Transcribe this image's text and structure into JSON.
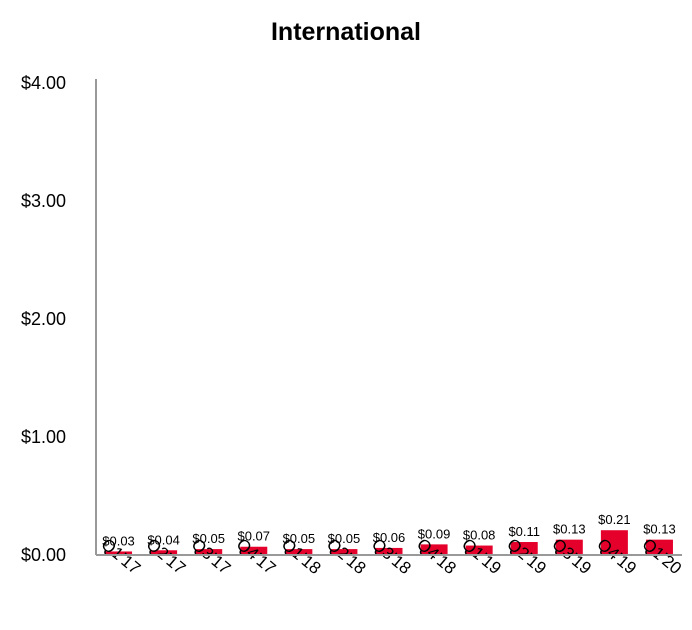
{
  "chart_data": {
    "type": "bar",
    "title": "International",
    "xlabel": "",
    "ylabel": "",
    "categories": [
      "Q1'17",
      "Q2'17",
      "Q3'17",
      "Q4'17",
      "Q1'18",
      "Q2'18",
      "Q3'18",
      "Q4'18",
      "Q1'19",
      "Q2'19",
      "Q3'19",
      "Q4'19",
      "Q1'20"
    ],
    "values": [
      0.03,
      0.04,
      0.05,
      0.07,
      0.05,
      0.05,
      0.06,
      0.09,
      0.08,
      0.11,
      0.13,
      0.21,
      0.13
    ],
    "data_labels": [
      "$0.03",
      "$0.04",
      "$0.05",
      "$0.07",
      "$0.05",
      "$0.05",
      "$0.06",
      "$0.09",
      "$0.08",
      "$0.11",
      "$0.13",
      "$0.21",
      "$0.13"
    ],
    "ylim": [
      0,
      4
    ],
    "yticks": [
      0,
      1,
      2,
      3,
      4
    ],
    "ytick_labels": [
      "$0.00",
      "$1.00",
      "$2.00",
      "$3.00",
      "$4.00"
    ],
    "grid": false,
    "legend": "none",
    "bar_color": "#e4002b",
    "axis_color": "#999999"
  }
}
